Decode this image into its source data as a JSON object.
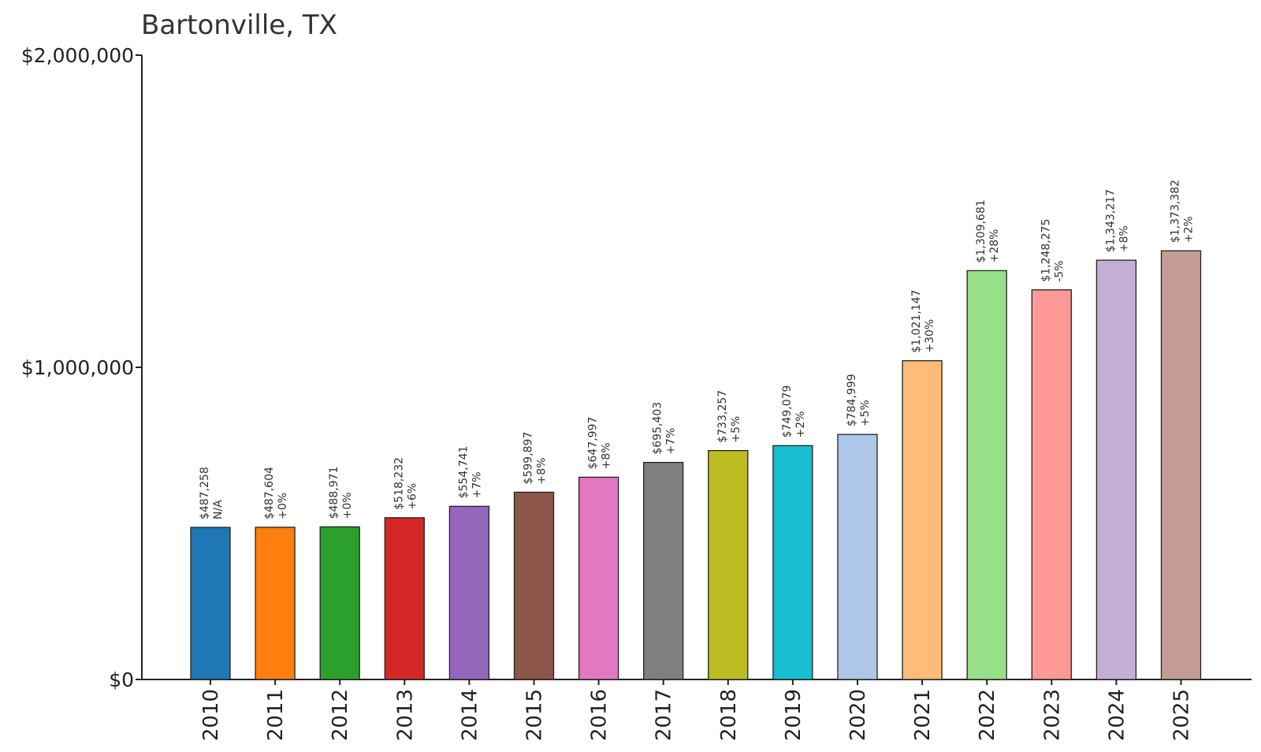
{
  "chart_data": {
    "type": "bar",
    "title": "Bartonville, TX",
    "xlabel": "",
    "ylabel": "",
    "ylim": [
      0,
      2000000
    ],
    "yticks": [
      0,
      1000000,
      2000000
    ],
    "ytick_labels": [
      "$0",
      "$1,000,000",
      "$2,000,000"
    ],
    "grid": false,
    "legend": "none",
    "categories": [
      "2010",
      "2011",
      "2012",
      "2013",
      "2014",
      "2015",
      "2016",
      "2017",
      "2018",
      "2019",
      "2020",
      "2021",
      "2022",
      "2023",
      "2024",
      "2025"
    ],
    "values": [
      487258,
      487604,
      488971,
      518232,
      554741,
      599897,
      647997,
      695403,
      733257,
      749079,
      784999,
      1021147,
      1309681,
      1248275,
      1343217,
      1373382
    ],
    "value_labels": [
      "$487,258",
      "$487,604",
      "$488,971",
      "$518,232",
      "$554,741",
      "$599,897",
      "$647,997",
      "$695,403",
      "$733,257",
      "$749,079",
      "$784,999",
      "$1,021,147",
      "$1,309,681",
      "$1,248,275",
      "$1,343,217",
      "$1,373,382"
    ],
    "change_labels": [
      "N/A",
      "+0%",
      "+0%",
      "+6%",
      "+7%",
      "+8%",
      "+8%",
      "+7%",
      "+5%",
      "+2%",
      "+5%",
      "+30%",
      "+28%",
      "-5%",
      "+8%",
      "+2%"
    ],
    "colors": [
      "#1f77b4",
      "#ff7f0e",
      "#2ca02c",
      "#d62728",
      "#9467bd",
      "#8c564b",
      "#e377c2",
      "#7f7f7f",
      "#bcbd22",
      "#17becf",
      "#aec7e8",
      "#ffbb78",
      "#98df8a",
      "#ff9896",
      "#c5b0d5",
      "#c49c94"
    ]
  }
}
